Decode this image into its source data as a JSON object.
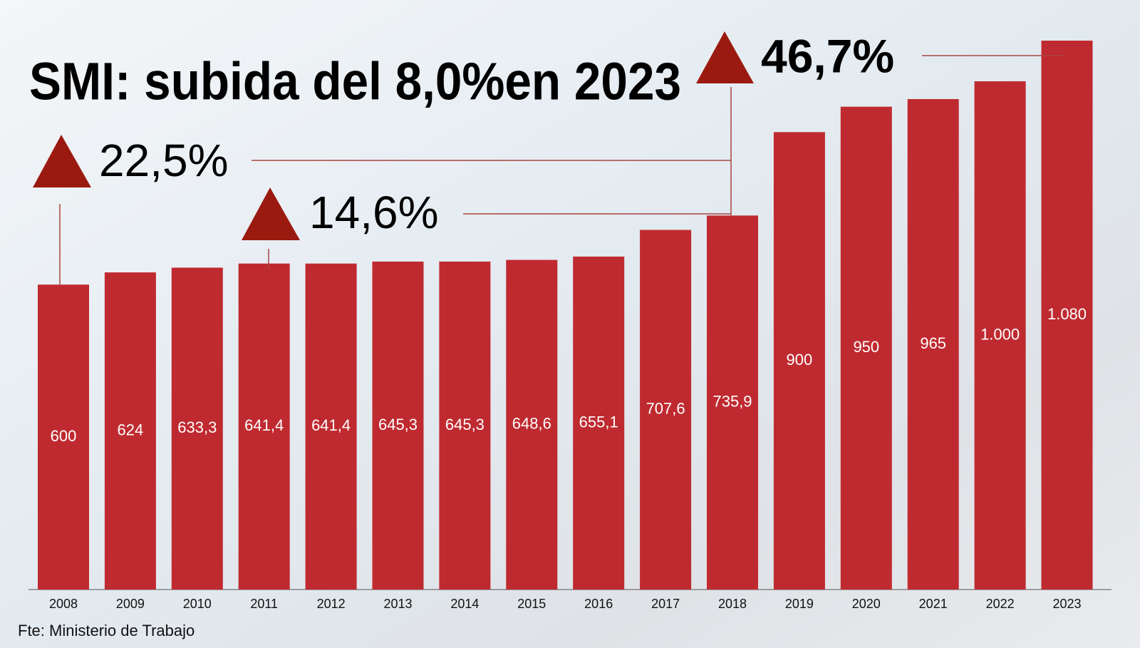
{
  "chart_data": {
    "type": "bar",
    "title": "SMI: subida del 8,0%en 2023",
    "categories": [
      "2008",
      "2009",
      "2010",
      "2011",
      "2012",
      "2013",
      "2014",
      "2015",
      "2016",
      "2017",
      "2018",
      "2019",
      "2020",
      "2021",
      "2022",
      "2023"
    ],
    "values": [
      600,
      624,
      633.3,
      641.4,
      641.4,
      645.3,
      645.3,
      648.6,
      655.1,
      707.6,
      735.9,
      900,
      950,
      965,
      1000,
      1080
    ],
    "value_labels": [
      "600",
      "624",
      "633,3",
      "641,4",
      "641,4",
      "645,3",
      "645,3",
      "648,6",
      "655,1",
      "707,6",
      "735,9",
      "900",
      "950",
      "965",
      "1.000",
      "1.080"
    ],
    "color": "#bf2a30",
    "annotations": [
      "22,5%",
      "14,6%",
      "46,7%"
    ],
    "source": "Fte: Ministerio de Trabajo"
  }
}
